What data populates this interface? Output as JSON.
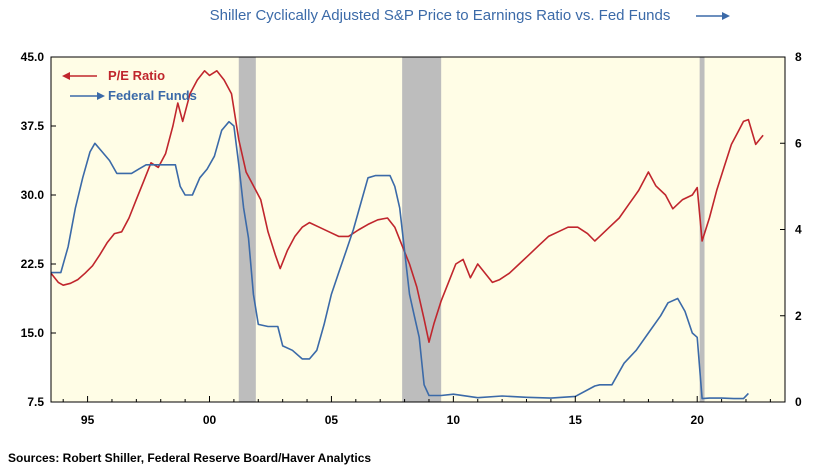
{
  "chart_data": {
    "type": "line",
    "title": "Shiller Cyclically Adjusted S&P Price to Earnings Ratio vs. Fed Funds",
    "source": "Sources:  Robert Shiller, Federal Reserve Board/Haver Analytics",
    "x_range": [
      1993.5,
      2023.6
    ],
    "x_ticks": [
      {
        "value": 1995,
        "label": "95"
      },
      {
        "value": 2000,
        "label": "00"
      },
      {
        "value": 2005,
        "label": "05"
      },
      {
        "value": 2010,
        "label": "10"
      },
      {
        "value": 2015,
        "label": "15"
      },
      {
        "value": 2020,
        "label": "20"
      }
    ],
    "y_left": {
      "range": [
        7.5,
        45.0
      ],
      "ticks": [
        "45.0",
        "37.5",
        "30.0",
        "22.5",
        "15.0",
        "7.5"
      ],
      "tick_values": [
        45.0,
        37.5,
        30.0,
        22.5,
        15.0,
        7.5
      ]
    },
    "y_right": {
      "range": [
        0,
        8
      ],
      "ticks": [
        "8",
        "6",
        "4",
        "2",
        "0"
      ],
      "tick_values": [
        8,
        6,
        4,
        2,
        0
      ]
    },
    "recessions": [
      [
        2001.2,
        2001.9
      ],
      [
        2007.9,
        2009.5
      ],
      [
        2020.1,
        2020.3
      ]
    ],
    "grid": false,
    "legend_position": "top-left",
    "series": [
      {
        "name": "P/E Ratio",
        "axis": "left",
        "color": "#c0262d",
        "arrow": "left",
        "x": [
          1993.5,
          1993.8,
          1994.0,
          1994.3,
          1994.6,
          1994.9,
          1995.2,
          1995.5,
          1995.8,
          1996.1,
          1996.4,
          1996.7,
          1997.0,
          1997.3,
          1997.6,
          1997.9,
          1998.2,
          1998.5,
          1998.7,
          1998.9,
          1999.2,
          1999.5,
          1999.8,
          2000.0,
          2000.3,
          2000.6,
          2000.9,
          2001.2,
          2001.5,
          2001.8,
          2002.1,
          2002.4,
          2002.7,
          2002.9,
          2003.2,
          2003.5,
          2003.8,
          2004.1,
          2004.5,
          2004.9,
          2005.3,
          2005.7,
          2006.1,
          2006.5,
          2006.9,
          2007.3,
          2007.6,
          2007.9,
          2008.2,
          2008.5,
          2008.8,
          2009.0,
          2009.2,
          2009.5,
          2009.8,
          2010.1,
          2010.4,
          2010.7,
          2011.0,
          2011.3,
          2011.6,
          2011.9,
          2012.3,
          2012.7,
          2013.1,
          2013.5,
          2013.9,
          2014.3,
          2014.7,
          2015.1,
          2015.5,
          2015.8,
          2016.0,
          2016.4,
          2016.8,
          2017.2,
          2017.6,
          2018.0,
          2018.3,
          2018.7,
          2019.0,
          2019.4,
          2019.8,
          2020.0,
          2020.2,
          2020.5,
          2020.8,
          2021.1,
          2021.4,
          2021.7,
          2021.9,
          2022.1,
          2022.4,
          2022.7
        ],
        "y": [
          21.5,
          20.5,
          20.2,
          20.4,
          20.8,
          21.5,
          22.3,
          23.5,
          24.8,
          25.8,
          26.0,
          27.5,
          29.5,
          31.5,
          33.5,
          33.0,
          34.5,
          37.5,
          40.0,
          38.0,
          41.0,
          42.5,
          43.5,
          43.0,
          43.5,
          42.5,
          41.0,
          36.0,
          32.5,
          31.0,
          29.5,
          26.0,
          23.5,
          22.0,
          24.0,
          25.5,
          26.5,
          27.0,
          26.5,
          26.0,
          25.5,
          25.5,
          26.2,
          26.8,
          27.3,
          27.5,
          26.5,
          24.5,
          22.5,
          20.0,
          16.5,
          14.0,
          16.0,
          18.5,
          20.5,
          22.5,
          23.0,
          21.0,
          22.5,
          21.5,
          20.5,
          20.8,
          21.5,
          22.5,
          23.5,
          24.5,
          25.5,
          26.0,
          26.5,
          26.5,
          25.8,
          25.0,
          25.5,
          26.5,
          27.5,
          29.0,
          30.5,
          32.5,
          31.0,
          30.0,
          28.5,
          29.5,
          30.0,
          30.8,
          25.0,
          27.5,
          30.5,
          33.0,
          35.5,
          37.0,
          38.0,
          38.2,
          35.5,
          36.5
        ]
      },
      {
        "name": "Federal Funds",
        "axis": "right",
        "color": "#3b6aa8",
        "arrow": "right",
        "x": [
          1993.5,
          1993.9,
          1994.2,
          1994.5,
          1994.8,
          1995.1,
          1995.3,
          1995.6,
          1995.9,
          1996.2,
          1996.5,
          1996.8,
          1997.1,
          1997.4,
          1997.7,
          1998.0,
          1998.3,
          1998.6,
          1998.8,
          1999.0,
          1999.3,
          1999.6,
          1999.9,
          2000.2,
          2000.5,
          2000.8,
          2001.0,
          2001.2,
          2001.4,
          2001.6,
          2001.8,
          2002.0,
          2002.4,
          2002.8,
          2003.0,
          2003.4,
          2003.8,
          2004.1,
          2004.4,
          2004.7,
          2005.0,
          2005.3,
          2005.6,
          2005.9,
          2006.2,
          2006.5,
          2006.8,
          2007.1,
          2007.4,
          2007.6,
          2007.8,
          2008.0,
          2008.2,
          2008.4,
          2008.6,
          2008.8,
          2009.0,
          2009.5,
          2010.0,
          2011.0,
          2012.0,
          2013.0,
          2014.0,
          2015.0,
          2015.8,
          2016.0,
          2016.5,
          2017.0,
          2017.5,
          2018.0,
          2018.5,
          2018.8,
          2019.2,
          2019.5,
          2019.8,
          2020.0,
          2020.2,
          2020.5,
          2021.0,
          2021.5,
          2021.9,
          2022.1
        ],
        "y": [
          3.0,
          3.0,
          3.6,
          4.5,
          5.2,
          5.8,
          6.0,
          5.8,
          5.6,
          5.3,
          5.3,
          5.3,
          5.4,
          5.5,
          5.5,
          5.5,
          5.5,
          5.5,
          5.0,
          4.8,
          4.8,
          5.2,
          5.4,
          5.7,
          6.3,
          6.5,
          6.4,
          5.5,
          4.5,
          3.8,
          2.5,
          1.8,
          1.75,
          1.75,
          1.3,
          1.2,
          1.0,
          1.0,
          1.2,
          1.8,
          2.5,
          3.0,
          3.5,
          4.0,
          4.6,
          5.2,
          5.25,
          5.25,
          5.25,
          5.0,
          4.5,
          3.5,
          2.5,
          2.0,
          1.5,
          0.4,
          0.15,
          0.15,
          0.18,
          0.1,
          0.14,
          0.11,
          0.09,
          0.13,
          0.37,
          0.4,
          0.4,
          0.9,
          1.2,
          1.6,
          2.0,
          2.3,
          2.4,
          2.1,
          1.6,
          1.5,
          0.08,
          0.09,
          0.09,
          0.08,
          0.08,
          0.2
        ]
      }
    ]
  }
}
